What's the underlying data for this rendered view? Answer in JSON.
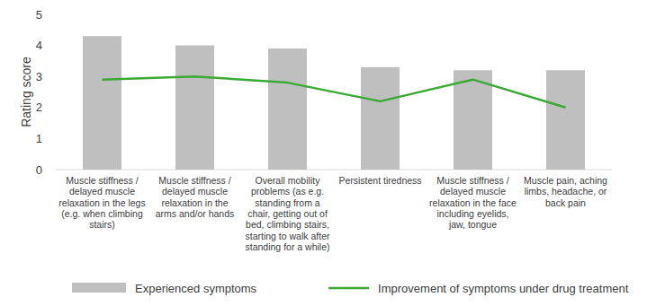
{
  "chart_data": {
    "type": "bar",
    "y_label": "Rating score",
    "categories": [
      "Muscle stiffness / delayed muscle relaxation in the legs (e.g. when climbing stairs)",
      "Muscle stiffness / delayed muscle relaxation in the arms and/or hands",
      "Overall mobility problems (as e.g. standing from a chair, getting out of bed, climbing stairs, starting to walk after standing for a while)",
      "Persistent tiredness",
      "Muscle stiffness / delayed muscle relaxation in the face including eyelids, jaw, tongue",
      "Muscle pain, aching limbs, headache, or back pain"
    ],
    "series": [
      {
        "name": "Experienced symptoms",
        "type": "bar",
        "color": "#bfbfbf",
        "values": [
          4.3,
          4.0,
          3.9,
          3.3,
          3.2,
          3.2
        ]
      },
      {
        "name": "Improvement of symptoms under drug treatment",
        "type": "line",
        "color": "#3aaa35",
        "values": [
          2.9,
          3.0,
          2.8,
          2.2,
          2.9,
          2.0
        ]
      }
    ],
    "ylim": [
      0,
      5
    ],
    "yticks": [
      0,
      1,
      2,
      3,
      4,
      5
    ],
    "grid": false,
    "legend": "bottom"
  }
}
